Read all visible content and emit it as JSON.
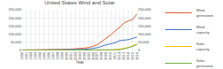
{
  "chart_data": {
    "type": "line",
    "title": "United States Wind and Solar",
    "xlabel": "Year",
    "x": [
      1990,
      1991,
      1992,
      1993,
      1994,
      1995,
      1996,
      1997,
      1998,
      1999,
      2000,
      2001,
      2002,
      2003,
      2004,
      2005,
      2006,
      2007,
      2008,
      2009,
      2010,
      2011,
      2012,
      2013,
      2014,
      2015,
      2016
    ],
    "series": [
      {
        "name": "Wind\ngeneration",
        "color": "#e05a2b",
        "values": [
          3000,
          3100,
          3300,
          3100,
          3600,
          3200,
          3400,
          3600,
          3100,
          4500,
          5600,
          6700,
          10300,
          11200,
          14100,
          17800,
          26600,
          34500,
          55400,
          73900,
          94600,
          119700,
          140800,
          167800,
          181800,
          190700,
          226500
        ]
      },
      {
        "name": "Wind\ncapacity",
        "color": "#4472c4",
        "values": [
          1500,
          1700,
          1800,
          1900,
          1920,
          1700,
          1800,
          2100,
          2600,
          2500,
          2600,
          4200,
          4700,
          6400,
          6700,
          9100,
          11600,
          16900,
          25400,
          35100,
          40300,
          46900,
          60000,
          61100,
          65900,
          73900,
          82200
        ]
      },
      {
        "name": "Solar\ncapacity",
        "color": "#ffc000",
        "values": [
          200,
          200,
          250,
          300,
          350,
          400,
          450,
          500,
          520,
          580,
          600,
          650,
          700,
          800,
          900,
          1000,
          1100,
          1300,
          1500,
          2000,
          2700,
          4400,
          7200,
          12000,
          18300,
          27300,
          40300
        ]
      },
      {
        "name": "Solar\ngeneration",
        "color": "#70ad47",
        "values": [
          500,
          500,
          520,
          540,
          570,
          580,
          600,
          620,
          640,
          680,
          700,
          750,
          800,
          900,
          1000,
          1100,
          1200,
          1300,
          1400,
          1700,
          2000,
          3000,
          4300,
          9000,
          15900,
          24900,
          36800
        ]
      }
    ],
    "xlim": [
      1990,
      2016
    ],
    "xticks": [
      1990,
      1991,
      1992,
      1993,
      1994,
      1995,
      1996,
      1997,
      1998,
      1999,
      2000,
      2001,
      2002,
      2003,
      2004,
      2005,
      2006,
      2007,
      2008,
      2009,
      2010,
      2011,
      2012,
      2013,
      2014,
      2015,
      2016
    ],
    "ylim": [
      0,
      250000
    ],
    "yticks": [
      0,
      {
        "value": 50000,
        "label": "50,000"
      },
      {
        "value": 100000,
        "label": "100,000"
      },
      {
        "value": 150000,
        "label": "150,000"
      },
      {
        "value": 200000,
        "label": "200,000"
      },
      {
        "value": 250000,
        "label": "250,000"
      }
    ],
    "y2lim": [
      0,
      250000
    ],
    "y2ticks": [
      0,
      {
        "value": 50000,
        "label": "50,000"
      },
      {
        "value": 100000,
        "label": "100,000"
      },
      {
        "value": 150000,
        "label": "150,000"
      },
      {
        "value": 200000,
        "label": "200,000"
      },
      {
        "value": 250000,
        "label": "250,000"
      }
    ],
    "grid": true
  }
}
